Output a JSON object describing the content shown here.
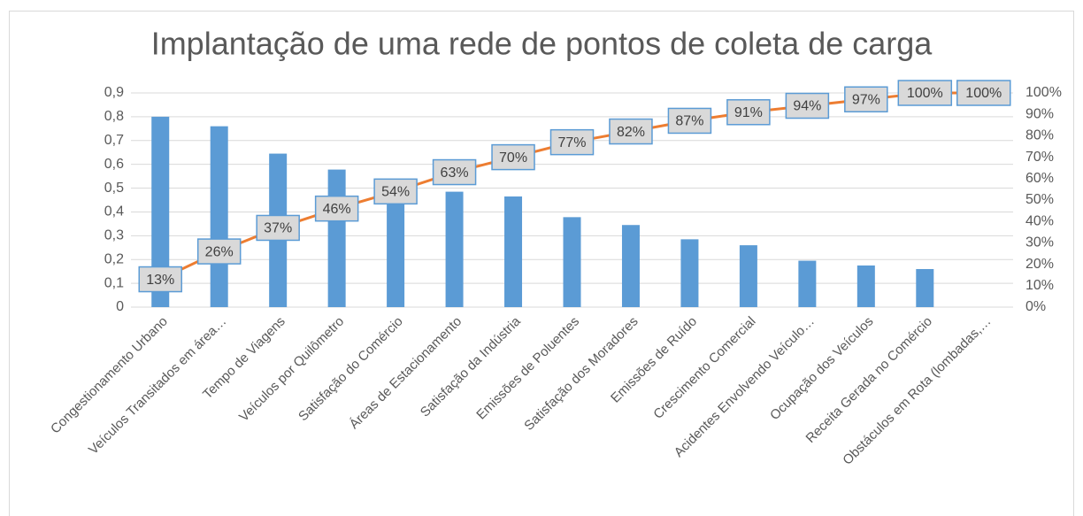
{
  "chart_data": {
    "type": "pareto",
    "title": "Implantação de uma rede de pontos de coleta de carga",
    "categories": [
      "Congestionamento Urbano",
      "Veículos Transitados em área…",
      "Tempo de Viagens",
      "Veículos por Quilômetro",
      "Satisfação do Comércio",
      "Áreas de Estacionamento",
      "Satisfação da Indústria",
      "Emissões de Poluentes",
      "Satisfação dos Moradores",
      "Emissões de Ruído",
      "Crescimento Comercial",
      "Acidentes Envolvendo Veículo…",
      "Ocupação dos Veículos",
      "Receita Gerada no Comércio",
      "Obstáculos em Rota (lombadas,…"
    ],
    "series": [
      {
        "type": "bar",
        "color": "#5b9bd5",
        "values": [
          0.8,
          0.76,
          0.645,
          0.578,
          0.5,
          0.485,
          0.465,
          0.378,
          0.345,
          0.285,
          0.26,
          0.195,
          0.175,
          0.16,
          0
        ]
      },
      {
        "type": "line",
        "axis": "y2",
        "color": "#ed7d31",
        "values": [
          13,
          26,
          37,
          46,
          54,
          63,
          70,
          77,
          82,
          87,
          91,
          94,
          97,
          100,
          100
        ],
        "value_labels": [
          "13%",
          "26%",
          "37%",
          "46%",
          "54%",
          "63%",
          "70%",
          "77%",
          "82%",
          "87%",
          "91%",
          "94%",
          "97%",
          "100%",
          "100%"
        ]
      }
    ],
    "ylim": [
      0,
      0.9
    ],
    "yticks": [
      0,
      {
        "value": 0.1,
        "label": "0,1"
      },
      {
        "value": 0.2,
        "label": "0,2"
      },
      {
        "value": 0.3,
        "label": "0,3"
      },
      {
        "value": 0.4,
        "label": "0,4"
      },
      {
        "value": 0.5,
        "label": "0,5"
      },
      {
        "value": 0.6,
        "label": "0,6"
      },
      {
        "value": 0.7,
        "label": "0,7"
      },
      {
        "value": 0.8,
        "label": "0,8"
      },
      {
        "value": 0.9,
        "label": "0,9"
      }
    ],
    "y2lim": [
      0,
      100
    ],
    "y2ticks": [
      {
        "value": 0,
        "label": "0%"
      },
      {
        "value": 10,
        "label": "10%"
      },
      {
        "value": 20,
        "label": "20%"
      },
      {
        "value": 30,
        "label": "30%"
      },
      {
        "value": 40,
        "label": "40%"
      },
      {
        "value": 50,
        "label": "50%"
      },
      {
        "value": 60,
        "label": "60%"
      },
      {
        "value": 70,
        "label": "70%"
      },
      {
        "value": 80,
        "label": "80%"
      },
      {
        "value": 90,
        "label": "90%"
      },
      {
        "value": 100,
        "label": "100%"
      }
    ],
    "grid": true
  }
}
